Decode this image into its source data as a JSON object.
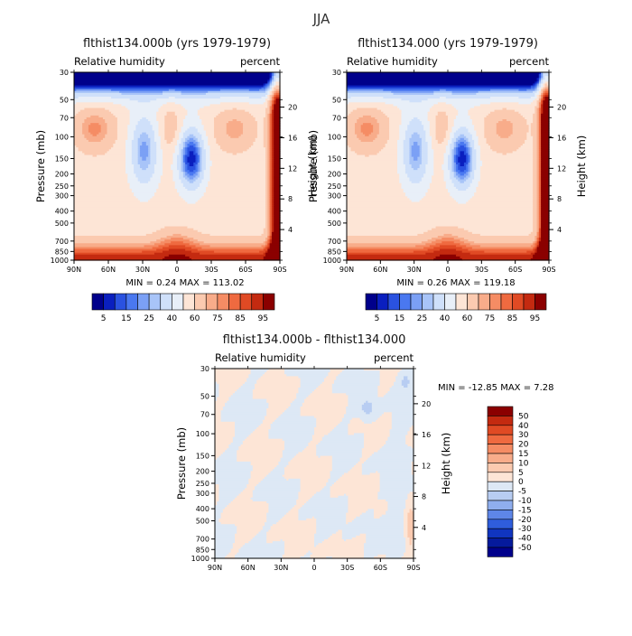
{
  "page_title": "JJA",
  "levels": [
    5,
    15,
    25,
    40,
    60,
    75,
    85,
    95
  ],
  "chart_data": [
    {
      "type": "heatmap",
      "title": "flthist134.000b (yrs 1979-1979)",
      "left_label": "Relative humidity",
      "right_label": "percent",
      "ylabel": "Pressure (mb)",
      "y2label": "Height (km)",
      "x_ticks": [
        "90N",
        "60N",
        "30N",
        "0",
        "30S",
        "60S",
        "90S"
      ],
      "y_ticks": [
        "30",
        "50",
        "70",
        "100",
        "150",
        "200",
        "250",
        "300",
        "400",
        "500",
        "700",
        "850",
        "1000"
      ],
      "y2_ticks": [
        "20",
        "16",
        "12",
        "8",
        "4"
      ],
      "stats": "MIN =    0.24   MAX = 113.02",
      "colorbar_labels": [
        "5",
        "15",
        "25",
        "40",
        "60",
        "75",
        "85",
        "95"
      ],
      "colors": [
        "#00008b",
        "#0a1fbf",
        "#2a52e0",
        "#4a78f0",
        "#7ba0f5",
        "#a8c4f8",
        "#cfe0fa",
        "#e8eff8",
        "#fde5d6",
        "#fbcab0",
        "#f8ac8a",
        "#f58c64",
        "#ef6a40",
        "#e04a24",
        "#c42a10",
        "#8b0000"
      ],
      "variant": 0
    },
    {
      "type": "heatmap",
      "title": "flthist134.000 (yrs 1979-1979)",
      "left_label": "Relative humidity",
      "right_label": "percent",
      "ylabel": "Pressure (mb)",
      "y2label": "Height (km)",
      "x_ticks": [
        "90N",
        "60N",
        "30N",
        "0",
        "30S",
        "60S",
        "90S"
      ],
      "y_ticks": [
        "30",
        "50",
        "70",
        "100",
        "150",
        "200",
        "250",
        "300",
        "400",
        "500",
        "700",
        "850",
        "1000"
      ],
      "y2_ticks": [
        "20",
        "16",
        "12",
        "8",
        "4"
      ],
      "stats": "MIN =    0.26   MAX = 119.18",
      "colorbar_labels": [
        "5",
        "15",
        "25",
        "40",
        "60",
        "75",
        "85",
        "95"
      ],
      "colors": [
        "#00008b",
        "#0a1fbf",
        "#2a52e0",
        "#4a78f0",
        "#7ba0f5",
        "#a8c4f8",
        "#cfe0fa",
        "#e8eff8",
        "#fde5d6",
        "#fbcab0",
        "#f8ac8a",
        "#f58c64",
        "#ef6a40",
        "#e04a24",
        "#c42a10",
        "#8b0000"
      ],
      "variant": 1
    },
    {
      "type": "heatmap",
      "title": "flthist134.000b - flthist134.000",
      "left_label": "Relative humidity",
      "right_label": "percent",
      "ylabel": "Pressure (mb)",
      "y2label": "Height (km)",
      "x_ticks": [
        "90N",
        "60N",
        "30N",
        "0",
        "30S",
        "60S",
        "90S"
      ],
      "y_ticks": [
        "30",
        "50",
        "70",
        "100",
        "150",
        "200",
        "250",
        "300",
        "400",
        "500",
        "700",
        "850",
        "1000"
      ],
      "y2_ticks": [
        "20",
        "16",
        "12",
        "8",
        "4"
      ],
      "stats": "MIN = -12.85   MAX =    7.28",
      "colorbar_labels": [
        "50",
        "40",
        "30",
        "20",
        "15",
        "10",
        "5",
        "0",
        "-5",
        "-10",
        "-15",
        "-20",
        "-30",
        "-40",
        "-50"
      ],
      "colors": [
        "#8b0000",
        "#c42a10",
        "#e04a24",
        "#ef6a40",
        "#f58c64",
        "#f8ac8a",
        "#fbcab0",
        "#fde5d6",
        "#dde8f5",
        "#b8cdf2",
        "#8faeee",
        "#5e86e8",
        "#2f5ddc",
        "#1035c0",
        "#051a9c",
        "#00008b"
      ]
    }
  ]
}
